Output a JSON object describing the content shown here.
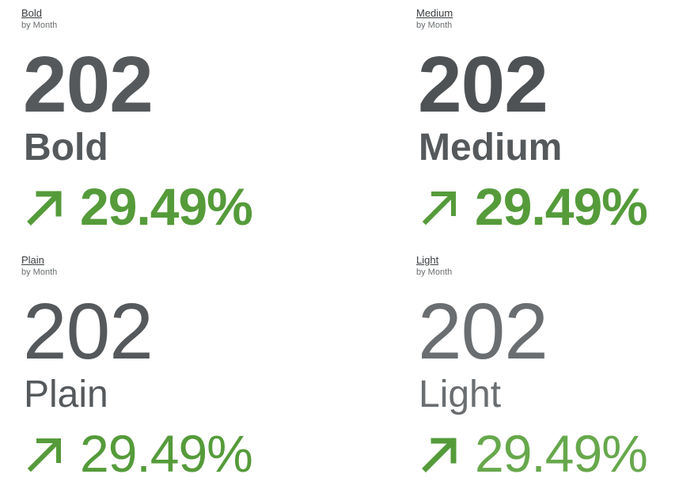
{
  "colors": {
    "text": "#55595c",
    "positive": "#559b3a",
    "background": "#ffffff"
  },
  "tiles": [
    {
      "title": "Bold",
      "subtitle": "by Month",
      "value": "202",
      "label": "Bold",
      "change": "29.49%",
      "trend_icon": "arrow-up-right-icon"
    },
    {
      "title": "Medium",
      "subtitle": "by Month",
      "value": "202",
      "label": "Medium",
      "change": "29.49%",
      "trend_icon": "arrow-up-right-icon"
    },
    {
      "title": "Plain",
      "subtitle": "by Month",
      "value": "202",
      "label": "Plain",
      "change": "29.49%",
      "trend_icon": "arrow-up-right-icon"
    },
    {
      "title": "Light",
      "subtitle": "by Month",
      "value": "202",
      "label": "Light",
      "change": "29.49%",
      "trend_icon": "arrow-up-right-icon"
    }
  ]
}
